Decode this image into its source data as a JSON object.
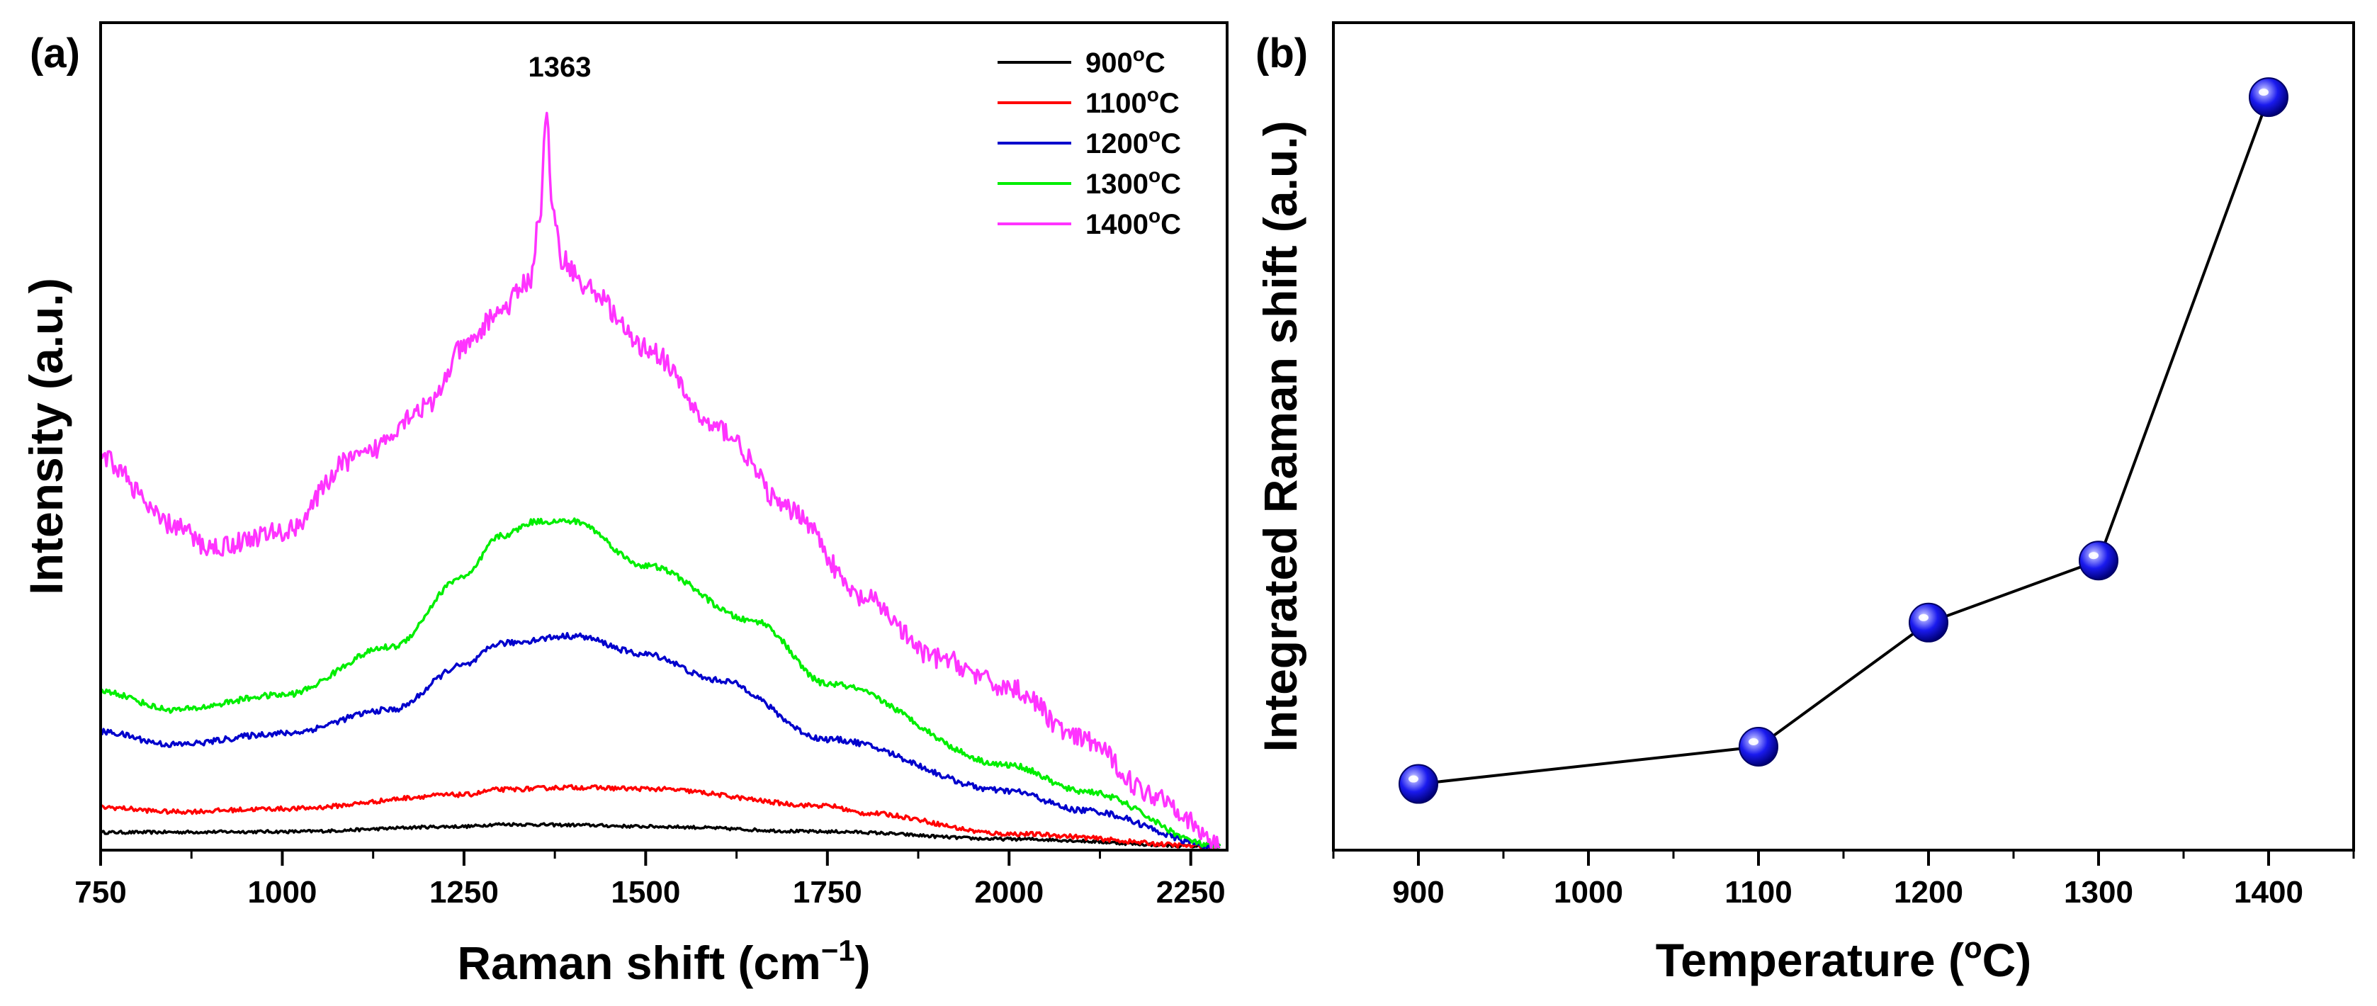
{
  "chart_data": [
    {
      "panel": "(a)",
      "type": "line",
      "xlabel": "Raman shift (cm",
      "xlabel_sup": "−1",
      "xlabel_end": ")",
      "ylabel": "Intensity (a.u.)",
      "xlim": [
        750,
        2300
      ],
      "ylim": [
        0,
        1.12
      ],
      "x_ticks": [
        750,
        1000,
        1250,
        1500,
        1750,
        2000,
        2250
      ],
      "x_tick_labels": [
        "750",
        "1000",
        "1250",
        "1500",
        "1750",
        "2000",
        "2250"
      ],
      "y_ticks_shown": false,
      "legend_position": "top-right",
      "annotation": {
        "text": "1363",
        "x": 1363,
        "y": 1.09
      },
      "series": [
        {
          "name": "900",
          "unit": "oC",
          "color": "#000000",
          "noise": 0.002,
          "points": [
            [
              750,
              0.024
            ],
            [
              1000,
              0.025
            ],
            [
              1250,
              0.032
            ],
            [
              1300,
              0.035
            ],
            [
              1400,
              0.034
            ],
            [
              1500,
              0.032
            ],
            [
              1750,
              0.025
            ],
            [
              2000,
              0.015
            ],
            [
              2290,
              0.005
            ]
          ]
        },
        {
          "name": "1100",
          "unit": "oC",
          "color": "#ff0000",
          "noise": 0.003,
          "points": [
            [
              750,
              0.058
            ],
            [
              850,
              0.052
            ],
            [
              1000,
              0.056
            ],
            [
              1250,
              0.075
            ],
            [
              1300,
              0.082
            ],
            [
              1400,
              0.085
            ],
            [
              1500,
              0.083
            ],
            [
              1750,
              0.06
            ],
            [
              1800,
              0.05
            ],
            [
              2000,
              0.022
            ],
            [
              2290,
              0.005
            ]
          ]
        },
        {
          "name": "1200",
          "unit": "oC",
          "color": "#0000cc",
          "noise": 0.004,
          "points": [
            [
              750,
              0.16
            ],
            [
              850,
              0.143
            ],
            [
              1000,
              0.158
            ],
            [
              1150,
              0.19
            ],
            [
              1250,
              0.25
            ],
            [
              1300,
              0.28
            ],
            [
              1400,
              0.29
            ],
            [
              1500,
              0.265
            ],
            [
              1600,
              0.23
            ],
            [
              1750,
              0.15
            ],
            [
              2000,
              0.08
            ],
            [
              2100,
              0.054
            ],
            [
              2290,
              0.005
            ]
          ]
        },
        {
          "name": "1300",
          "unit": "oC",
          "color": "#00ee00",
          "noise": 0.004,
          "points": [
            [
              750,
              0.215
            ],
            [
              850,
              0.19
            ],
            [
              1000,
              0.21
            ],
            [
              1150,
              0.275
            ],
            [
              1250,
              0.37
            ],
            [
              1300,
              0.425
            ],
            [
              1350,
              0.445
            ],
            [
              1400,
              0.445
            ],
            [
              1500,
              0.385
            ],
            [
              1650,
              0.31
            ],
            [
              1750,
              0.225
            ],
            [
              2000,
              0.115
            ],
            [
              2100,
              0.08
            ],
            [
              2290,
              0.005
            ]
          ]
        },
        {
          "name": "1400",
          "unit": "oC",
          "color": "#ff33ff",
          "noise": 0.014,
          "points": [
            [
              750,
              0.53
            ],
            [
              850,
              0.44
            ],
            [
              900,
              0.41
            ],
            [
              1000,
              0.43
            ],
            [
              1100,
              0.53
            ],
            [
              1200,
              0.6
            ],
            [
              1250,
              0.68
            ],
            [
              1300,
              0.73
            ],
            [
              1340,
              0.77
            ],
            [
              1355,
              0.86
            ],
            [
              1363,
              1.0
            ],
            [
              1372,
              0.86
            ],
            [
              1385,
              0.8
            ],
            [
              1420,
              0.76
            ],
            [
              1500,
              0.68
            ],
            [
              1600,
              0.57
            ],
            [
              1700,
              0.46
            ],
            [
              1800,
              0.34
            ],
            [
              1900,
              0.26
            ],
            [
              2000,
              0.22
            ],
            [
              2100,
              0.15
            ],
            [
              2200,
              0.075
            ],
            [
              2290,
              0.01
            ]
          ]
        }
      ]
    },
    {
      "panel": "(b)",
      "type": "scatter",
      "xlabel": "Temperature (",
      "xlabel_sup": "o",
      "xlabel_end": "C)",
      "ylabel": "Integrated Raman shift (a.u.)",
      "xlim": [
        850,
        1450
      ],
      "ylim": [
        0,
        1
      ],
      "x_ticks": [
        900,
        1000,
        1100,
        1200,
        1300,
        1400
      ],
      "x_tick_labels": [
        "900",
        "1000",
        "1100",
        "1200",
        "1300",
        "1400"
      ],
      "y_ticks_shown": false,
      "x": [
        900,
        1100,
        1200,
        1300,
        1400
      ],
      "y": [
        0.08,
        0.125,
        0.275,
        0.35,
        0.91
      ],
      "marker_color": "#1a1aee",
      "line_color": "#000000"
    }
  ]
}
